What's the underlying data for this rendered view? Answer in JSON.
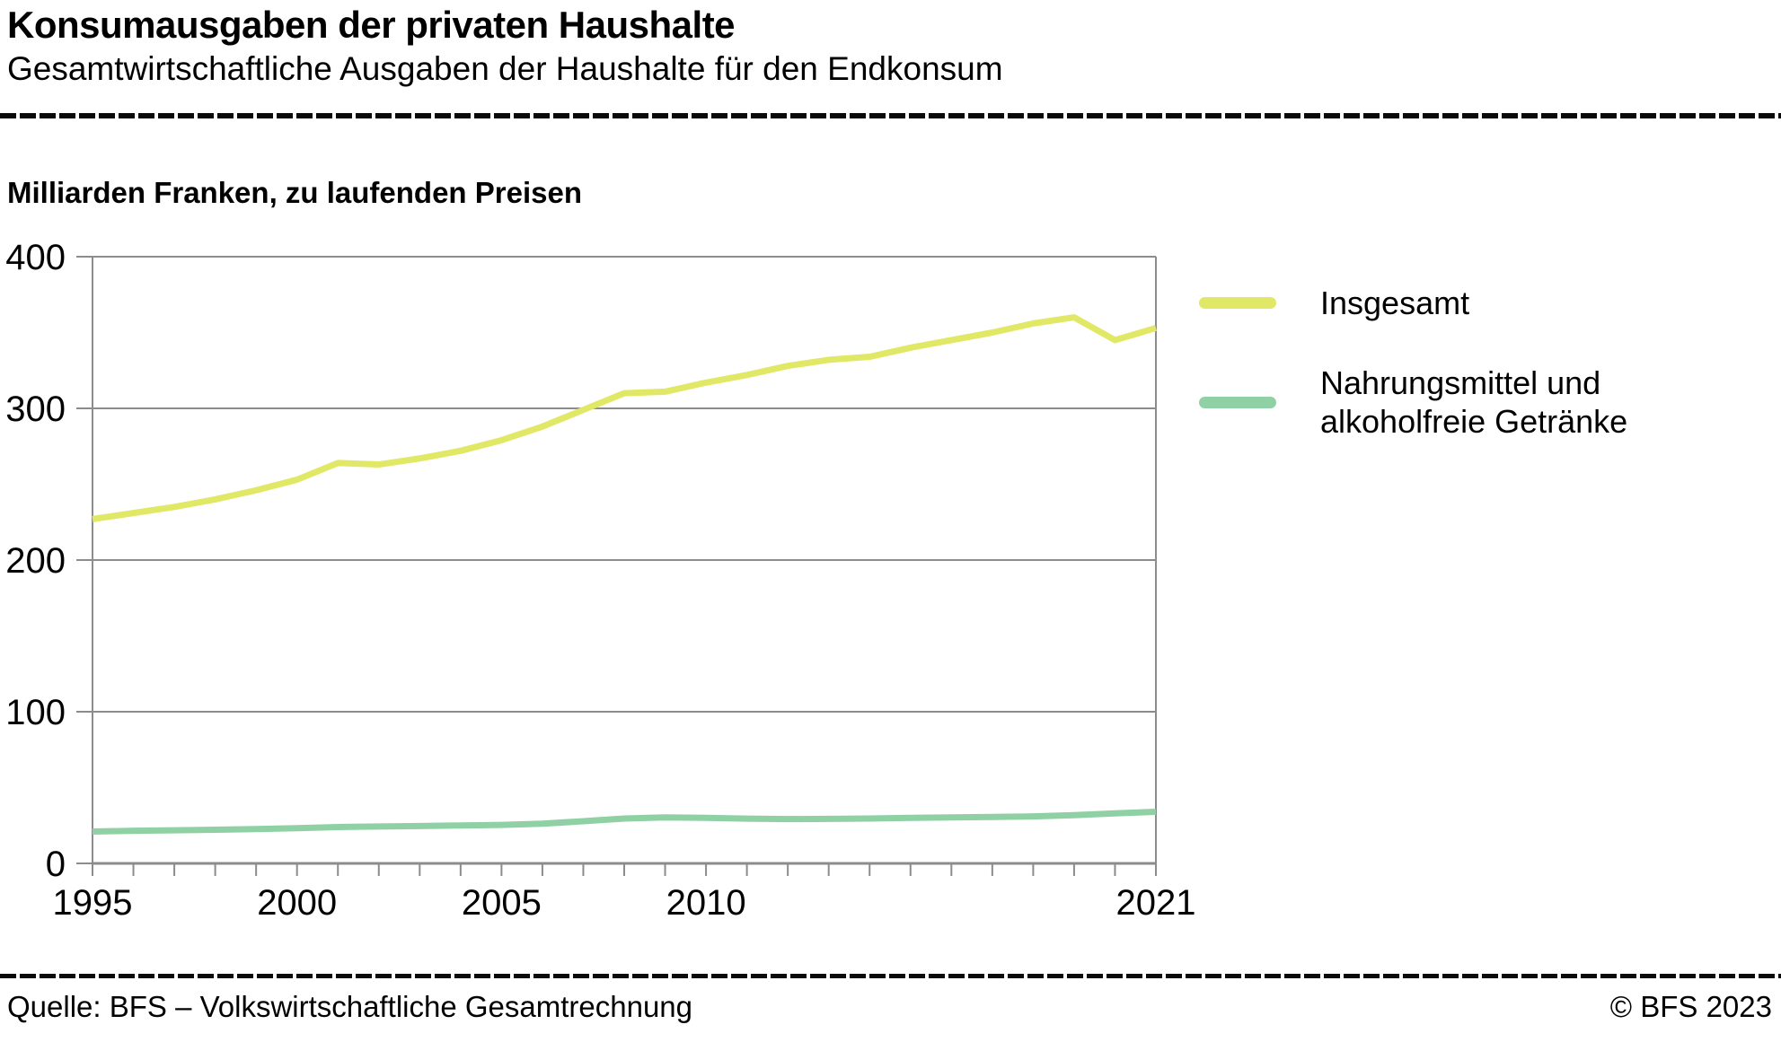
{
  "header": {
    "title": "Konsumausgaben der privaten Haushalte",
    "subtitle": "Gesamtwirtschaftliche Ausgaben der Haushalte für den Endkonsum"
  },
  "chart": {
    "unit_label": "Milliarden Franken, zu laufenden Preisen"
  },
  "legend": {
    "items": [
      {
        "label": "Insgesamt",
        "color": "#e0e866"
      },
      {
        "label": "Nahrungsmittel und alkoholfreie Getränke",
        "color": "#8fd1a4"
      }
    ]
  },
  "footer": {
    "source": "Quelle: BFS – Volkswirtschaftliche Gesamtrechnung",
    "copyright": "© BFS 2023"
  },
  "colors": {
    "grid": "#8c8c8c",
    "axis": "#8c8c8c",
    "tick_text": "#000000",
    "series_total": "#e0e866",
    "series_food": "#8fd1a4"
  },
  "chart_data": {
    "type": "line",
    "title": "Milliarden Franken, zu laufenden Preisen",
    "xlabel": "",
    "ylabel": "Milliarden Franken",
    "x": [
      1995,
      1996,
      1997,
      1998,
      1999,
      2000,
      2001,
      2002,
      2003,
      2004,
      2005,
      2006,
      2007,
      2008,
      2009,
      2010,
      2011,
      2012,
      2013,
      2014,
      2015,
      2016,
      2017,
      2018,
      2019,
      2020,
      2021
    ],
    "series": [
      {
        "name": "Insgesamt",
        "color": "#e0e866",
        "values": [
          227,
          231,
          235,
          240,
          246,
          253,
          264,
          263,
          267,
          272,
          279,
          288,
          299,
          310,
          311,
          317,
          322,
          328,
          332,
          334,
          340,
          345,
          350,
          356,
          360,
          345,
          353
        ]
      },
      {
        "name": "Nahrungsmittel und alkoholfreie Getränke",
        "color": "#8fd1a4",
        "values": [
          21,
          21.5,
          21.8,
          22.2,
          22.6,
          23.2,
          24,
          24.3,
          24.6,
          25,
          25.4,
          26.2,
          27.8,
          29.6,
          30.3,
          30,
          29.5,
          29.2,
          29.4,
          29.6,
          30,
          30.3,
          30.6,
          31,
          31.8,
          33,
          34
        ]
      }
    ],
    "xlim": [
      1995,
      2021
    ],
    "ylim": [
      0,
      400
    ],
    "yticks": [
      0,
      100,
      200,
      300,
      400
    ],
    "xticks_all_years": true,
    "xtick_labeled": [
      1995,
      2000,
      2005,
      2010,
      2021
    ],
    "grid": "horizontal",
    "legend_position": "right"
  }
}
